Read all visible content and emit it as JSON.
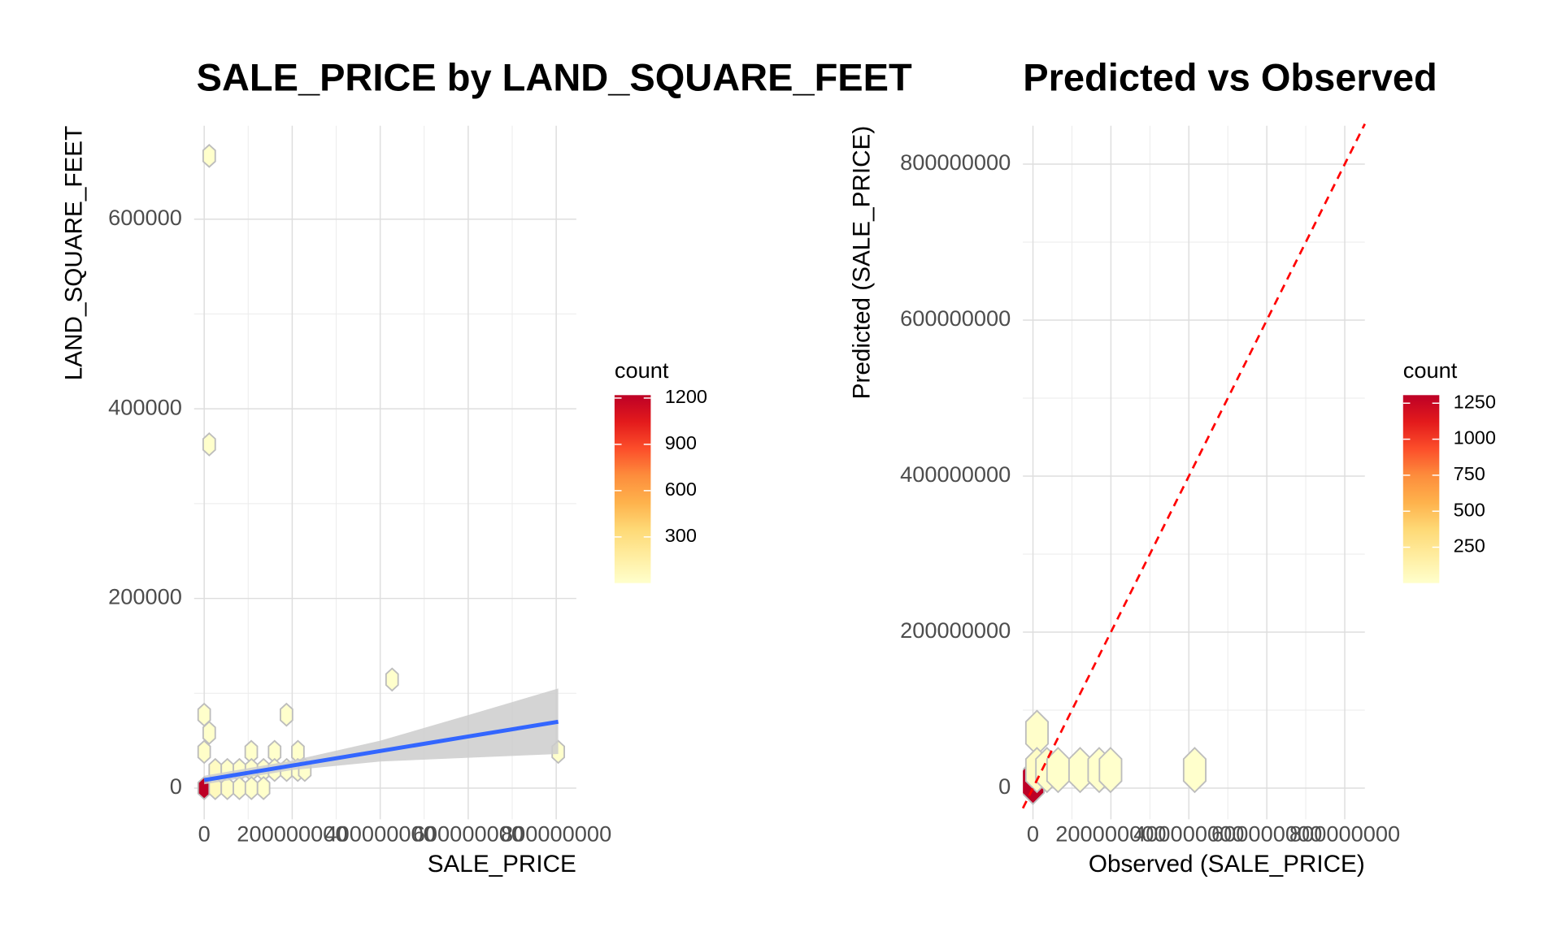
{
  "chart_data": [
    {
      "type": "hexbin",
      "title": "SALE_PRICE by LAND_SQUARE_FEET",
      "x_label": "SALE_PRICE",
      "y_label": "LAND_SQUARE_FEET",
      "xlim": [
        -22900000,
        845700000
      ],
      "ylim": [
        -32900,
        698500
      ],
      "xticks": [
        0,
        200000000,
        400000000,
        600000000,
        800000000
      ],
      "yticks": [
        0,
        200000,
        400000,
        600000
      ],
      "grid": true,
      "points": {
        "x": [
          11400000,
          11400000,
          427000000,
          804600000,
          0,
          11400000,
          187000000,
          0,
          107000000,
          160000000,
          213000000,
          25100000,
          52600000,
          80000000,
          107400000,
          134900000,
          160000000,
          187400000,
          212600000,
          228600000,
          0,
          25100000,
          52600000,
          80000000,
          107400000,
          134900000
        ],
        "y": [
          666700,
          362500,
          114500,
          38200,
          77400,
          58300,
          77400,
          38200,
          38200,
          38200,
          38200,
          19100,
          19100,
          19100,
          19100,
          19100,
          19100,
          19100,
          19100,
          19100,
          0,
          0,
          0,
          0,
          0,
          0
        ],
        "count": [
          2,
          1,
          1,
          1,
          3,
          4,
          1,
          15,
          2,
          1,
          1,
          40,
          12,
          8,
          6,
          4,
          3,
          2,
          2,
          1,
          1219,
          60,
          20,
          10,
          5,
          3
        ]
      },
      "fit": {
        "color": "#3366ff",
        "band_color": "#cccccc",
        "x": [
          0,
          200000000,
          400000000,
          600000000,
          804600000
        ],
        "y": [
          8500,
          23800,
          39100,
          54400,
          70000
        ],
        "lower": [
          4000,
          19000,
          28000,
          32000,
          36000
        ],
        "upper": [
          13000,
          29000,
          50000,
          77000,
          105000
        ]
      },
      "colorbar": {
        "title": "count",
        "lim": [
          1,
          1219
        ],
        "ticks": [
          300,
          600,
          900,
          1200
        ],
        "colors": [
          "#ffffcc",
          "#ffeda0",
          "#fed976",
          "#feb24c",
          "#fd8d3c",
          "#fc4e2a",
          "#e31a1c",
          "#bd0026"
        ]
      }
    },
    {
      "type": "hexbin",
      "title": "Predicted vs Observed",
      "x_label": "Observed (SALE_PRICE)",
      "y_label": "Predicted (SALE_PRICE)",
      "xlim": [
        -25800000,
        851600000
      ],
      "ylim": [
        -40000000,
        849200000
      ],
      "xticks": [
        0,
        200000000,
        400000000,
        600000000,
        800000000
      ],
      "yticks": [
        0,
        200000000,
        400000000,
        600000000,
        800000000
      ],
      "grid": true,
      "points": {
        "x": [
          0,
          10300000,
          10300000,
          36000000,
          64500000,
          121000000,
          170000000,
          199000000,
          415000000
        ],
        "y": [
          8000000,
          70900000,
          23200000,
          23200000,
          23200000,
          23200000,
          23200000,
          23200000,
          23200000
        ],
        "count": [
          1306,
          8,
          30,
          10,
          5,
          3,
          2,
          2,
          1
        ]
      },
      "reference_line": {
        "slope": 1,
        "intercept": 0,
        "color": "#ff0000"
      },
      "colorbar": {
        "title": "count",
        "lim": [
          1,
          1306
        ],
        "ticks": [
          250,
          500,
          750,
          1000,
          1250
        ],
        "colors": [
          "#ffffcc",
          "#ffeda0",
          "#fed976",
          "#feb24c",
          "#fd8d3c",
          "#fc4e2a",
          "#e31a1c",
          "#bd0026"
        ]
      }
    }
  ]
}
